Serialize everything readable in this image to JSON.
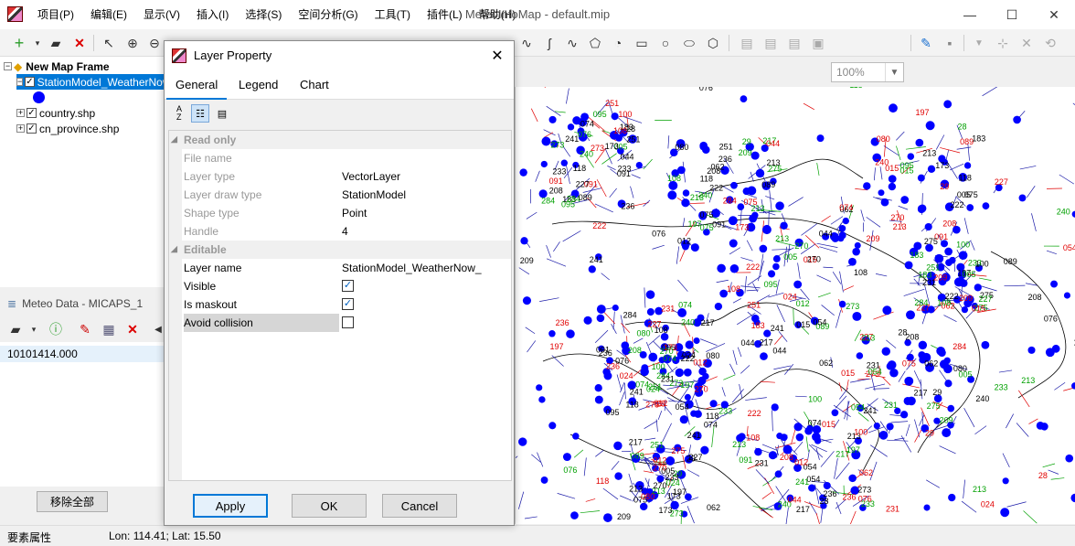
{
  "window": {
    "title": "MeteoInfoMap - default.mip",
    "minimize": "—",
    "maximize": "☐",
    "close": "✕"
  },
  "menu": [
    "项目(P)",
    "编辑(E)",
    "显示(V)",
    "插入(I)",
    "选择(S)",
    "空间分析(G)",
    "工具(T)",
    "插件(L)",
    "帮助(H)"
  ],
  "toolbar": {
    "zoom_value": "100%"
  },
  "legend": {
    "frame_label": "New Map Frame",
    "layers": [
      "StationModel_WeatherNow_",
      "country.shp",
      "cn_province.shp"
    ]
  },
  "meteo": {
    "title": "Meteo Data - MICAPS_1",
    "item": "10101414.000",
    "remove_all": "移除全部"
  },
  "status": {
    "left": "要素属性",
    "coords": "Lon: 114.41; Lat: 15.50"
  },
  "dialog": {
    "title": "Layer Property",
    "tabs": [
      "General",
      "Legend",
      "Chart"
    ],
    "categories": {
      "readonly": "Read only",
      "editable": "Editable"
    },
    "readonly_props": [
      {
        "name": "File name",
        "value": ""
      },
      {
        "name": "Layer type",
        "value": "VectorLayer"
      },
      {
        "name": "Layer draw type",
        "value": "StationModel"
      },
      {
        "name": "Shape type",
        "value": "Point"
      },
      {
        "name": "Handle",
        "value": "4"
      }
    ],
    "editable_props": {
      "layer_name": {
        "name": "Layer name",
        "value": "StationModel_WeatherNow_"
      },
      "visible": {
        "name": "Visible",
        "checked": true
      },
      "maskout": {
        "name": "Is maskout",
        "checked": true
      },
      "avoid": {
        "name": "Avoid collision",
        "checked": false
      }
    },
    "buttons": {
      "apply": "Apply",
      "ok": "OK",
      "cancel": "Cancel"
    }
  },
  "map": {
    "station_labels": [
      "209",
      "251",
      "273",
      "015",
      "236",
      "275",
      "284",
      "208",
      "217",
      "213",
      "231",
      "270",
      "241",
      "233",
      "197",
      "240",
      "227",
      "118",
      "222",
      "183",
      "062",
      "074",
      "054",
      "076",
      "091",
      "108",
      "095",
      "100",
      "28",
      "29",
      "080",
      "075",
      "024",
      "089",
      "213",
      "005",
      "173",
      "012",
      "044"
    ],
    "colors": {
      "station": "#0000ff",
      "wind": "#1a1aa8",
      "red_label": "#e00000",
      "green_label": "#00a000",
      "black_label": "#000000",
      "border": "#000000"
    }
  }
}
